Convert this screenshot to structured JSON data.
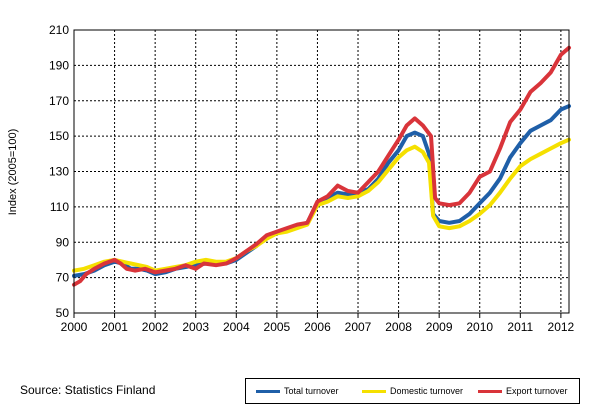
{
  "chart_data": {
    "type": "line",
    "ylabel": "Index (2005=100)",
    "ylim": [
      50,
      210
    ],
    "xlim": [
      2000,
      2012.2
    ],
    "yticks": [
      50,
      70,
      90,
      110,
      130,
      150,
      170,
      190,
      210
    ],
    "xticks": [
      "2000",
      "2001",
      "2002",
      "2003",
      "2004",
      "2005",
      "2006",
      "2007",
      "2008",
      "2009",
      "2010",
      "2011",
      "2012"
    ],
    "grid": true,
    "legend_position": "bottom-right",
    "source": "Source: Statistics Finland",
    "series": [
      {
        "name": "Total turnover",
        "color": "#1f5fa8",
        "points": [
          [
            2000.0,
            71
          ],
          [
            2000.25,
            72
          ],
          [
            2000.5,
            74
          ],
          [
            2000.75,
            77
          ],
          [
            2001.0,
            79
          ],
          [
            2001.2,
            78
          ],
          [
            2001.4,
            75
          ],
          [
            2001.6,
            75
          ],
          [
            2001.8,
            74
          ],
          [
            2002.0,
            72
          ],
          [
            2002.25,
            73
          ],
          [
            2002.5,
            75
          ],
          [
            2002.75,
            76
          ],
          [
            2003.0,
            77
          ],
          [
            2003.25,
            78
          ],
          [
            2003.5,
            78
          ],
          [
            2003.75,
            78
          ],
          [
            2004.0,
            80
          ],
          [
            2004.25,
            84
          ],
          [
            2004.5,
            88
          ],
          [
            2004.75,
            93
          ],
          [
            2005.0,
            95
          ],
          [
            2005.25,
            97
          ],
          [
            2005.5,
            99
          ],
          [
            2005.75,
            101
          ],
          [
            2006.0,
            112
          ],
          [
            2006.25,
            115
          ],
          [
            2006.5,
            118
          ],
          [
            2006.75,
            117
          ],
          [
            2007.0,
            118
          ],
          [
            2007.25,
            120
          ],
          [
            2007.5,
            126
          ],
          [
            2007.75,
            135
          ],
          [
            2008.0,
            142
          ],
          [
            2008.2,
            150
          ],
          [
            2008.4,
            152
          ],
          [
            2008.6,
            150
          ],
          [
            2008.75,
            140
          ],
          [
            2008.85,
            106
          ],
          [
            2009.0,
            102
          ],
          [
            2009.25,
            101
          ],
          [
            2009.5,
            102
          ],
          [
            2009.75,
            106
          ],
          [
            2010.0,
            112
          ],
          [
            2010.25,
            118
          ],
          [
            2010.5,
            126
          ],
          [
            2010.75,
            138
          ],
          [
            2011.0,
            146
          ],
          [
            2011.25,
            153
          ],
          [
            2011.5,
            156
          ],
          [
            2011.75,
            159
          ],
          [
            2012.0,
            165
          ],
          [
            2012.2,
            167
          ]
        ]
      },
      {
        "name": "Domestic turnover",
        "color": "#f5e000",
        "points": [
          [
            2000.0,
            74
          ],
          [
            2000.25,
            75
          ],
          [
            2000.5,
            77
          ],
          [
            2000.75,
            79
          ],
          [
            2001.0,
            80
          ],
          [
            2001.2,
            79
          ],
          [
            2001.4,
            78
          ],
          [
            2001.6,
            77
          ],
          [
            2001.8,
            76
          ],
          [
            2002.0,
            74
          ],
          [
            2002.25,
            75
          ],
          [
            2002.5,
            76
          ],
          [
            2002.75,
            77
          ],
          [
            2003.0,
            79
          ],
          [
            2003.25,
            80
          ],
          [
            2003.5,
            79
          ],
          [
            2003.75,
            79
          ],
          [
            2004.0,
            81
          ],
          [
            2004.25,
            85
          ],
          [
            2004.5,
            88
          ],
          [
            2004.75,
            92
          ],
          [
            2005.0,
            95
          ],
          [
            2005.25,
            96
          ],
          [
            2005.5,
            98
          ],
          [
            2005.75,
            100
          ],
          [
            2006.0,
            111
          ],
          [
            2006.25,
            113
          ],
          [
            2006.5,
            116
          ],
          [
            2006.75,
            115
          ],
          [
            2007.0,
            116
          ],
          [
            2007.25,
            119
          ],
          [
            2007.5,
            124
          ],
          [
            2007.75,
            131
          ],
          [
            2008.0,
            138
          ],
          [
            2008.2,
            142
          ],
          [
            2008.4,
            144
          ],
          [
            2008.6,
            141
          ],
          [
            2008.75,
            135
          ],
          [
            2008.85,
            105
          ],
          [
            2009.0,
            99
          ],
          [
            2009.25,
            98
          ],
          [
            2009.5,
            99
          ],
          [
            2009.75,
            102
          ],
          [
            2010.0,
            106
          ],
          [
            2010.25,
            111
          ],
          [
            2010.5,
            118
          ],
          [
            2010.75,
            126
          ],
          [
            2011.0,
            133
          ],
          [
            2011.25,
            137
          ],
          [
            2011.5,
            140
          ],
          [
            2011.75,
            143
          ],
          [
            2012.0,
            146
          ],
          [
            2012.2,
            148
          ]
        ]
      },
      {
        "name": "Export turnover",
        "color": "#d9343a",
        "points": [
          [
            2000.0,
            66
          ],
          [
            2000.15,
            68
          ],
          [
            2000.3,
            72
          ],
          [
            2000.5,
            75
          ],
          [
            2000.75,
            78
          ],
          [
            2001.0,
            80
          ],
          [
            2001.15,
            78
          ],
          [
            2001.3,
            75
          ],
          [
            2001.5,
            74
          ],
          [
            2001.75,
            75
          ],
          [
            2002.0,
            73
          ],
          [
            2002.25,
            74
          ],
          [
            2002.5,
            75
          ],
          [
            2002.75,
            77
          ],
          [
            2003.0,
            75
          ],
          [
            2003.2,
            78
          ],
          [
            2003.5,
            77
          ],
          [
            2003.75,
            78
          ],
          [
            2004.0,
            81
          ],
          [
            2004.25,
            85
          ],
          [
            2004.5,
            89
          ],
          [
            2004.75,
            94
          ],
          [
            2005.0,
            96
          ],
          [
            2005.25,
            98
          ],
          [
            2005.5,
            100
          ],
          [
            2005.75,
            101
          ],
          [
            2006.0,
            113
          ],
          [
            2006.25,
            116
          ],
          [
            2006.5,
            122
          ],
          [
            2006.75,
            119
          ],
          [
            2007.0,
            118
          ],
          [
            2007.25,
            124
          ],
          [
            2007.5,
            130
          ],
          [
            2007.75,
            139
          ],
          [
            2008.0,
            148
          ],
          [
            2008.2,
            156
          ],
          [
            2008.4,
            160
          ],
          [
            2008.6,
            156
          ],
          [
            2008.8,
            150
          ],
          [
            2008.9,
            115
          ],
          [
            2009.0,
            112
          ],
          [
            2009.25,
            111
          ],
          [
            2009.5,
            112
          ],
          [
            2009.75,
            118
          ],
          [
            2010.0,
            127
          ],
          [
            2010.25,
            130
          ],
          [
            2010.5,
            143
          ],
          [
            2010.75,
            158
          ],
          [
            2011.0,
            165
          ],
          [
            2011.25,
            175
          ],
          [
            2011.5,
            180
          ],
          [
            2011.75,
            186
          ],
          [
            2012.0,
            196
          ],
          [
            2012.2,
            200
          ]
        ]
      }
    ]
  }
}
